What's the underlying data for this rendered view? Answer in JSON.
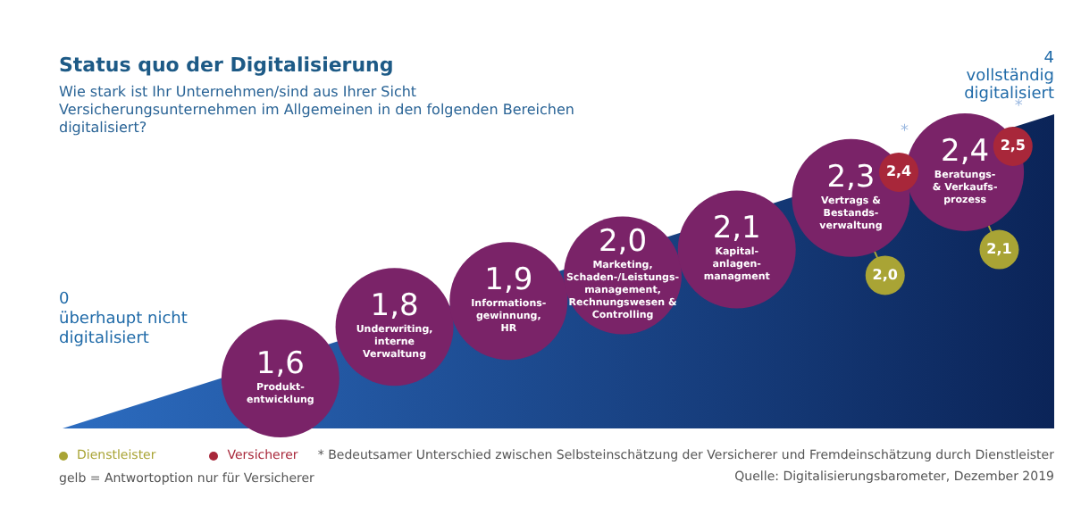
{
  "chart_data": {
    "type": "other",
    "title": "Status quo der Digitalisierung",
    "subtitle": "Wie stark ist Ihr Unternehmen/sind aus Ihrer Sicht Versicherungsunternehmen im Allgemeinen in den folgenden Bereichen digitalisiert?",
    "categories": [
      "Produkt-\nentwicklung",
      "Underwriting,\ninterne\nVerwaltung",
      "Informations-\ngewinnung,\nHR",
      "Marketing,\nSchaden-/Leistungs-\nmanagement,\nRechnungswesen &\nControlling",
      "Kapital-\nanlagen-\nmanagment",
      "Vertrags &\nBestands-\nverwaltung",
      "Beratungs-\n& Verkaufs-\nprozess"
    ],
    "series": [
      {
        "color": "#7a2368",
        "values": [
          1.6,
          1.8,
          1.9,
          2.0,
          2.1,
          2.3,
          2.4
        ],
        "value_labels": [
          "1,6",
          "1,8",
          "1,9",
          "2,0",
          "2,1",
          "2,3",
          "2,4"
        ]
      },
      {
        "name": "Dienstleister",
        "color": "#a9a435",
        "values": [
          null,
          null,
          null,
          null,
          null,
          2.0,
          2.1
        ],
        "value_labels": [
          null,
          null,
          null,
          null,
          null,
          "2,0",
          "2,1"
        ]
      },
      {
        "name": "Versicherer",
        "color": "#a8273a",
        "values": [
          null,
          null,
          null,
          null,
          null,
          2.4,
          2.5
        ],
        "value_labels": [
          null,
          null,
          null,
          null,
          null,
          "2,4",
          "2,5"
        ]
      }
    ],
    "legend": "bottom left",
    "annotations": [
      "4\nvollständig\ndigitalisiert",
      "0\nüberhaupt nicht\ndigitalisiert",
      {
        "text": "*",
        "x": "Beratungs-\n& Verkaufs-\nprozess"
      },
      {
        "text": "*",
        "x": "Vertrags &\nBestands-\nverwaltung"
      },
      "gelb = Antwortoption nur für Versicherer",
      "* Bedeutsamer Unterschied zwischen Selbsteinschätzung der Versicherer und Fremdeinschätzung durch Dienstleister",
      "Quelle: Digitalisierungsbarometer, Dezember 2019"
    ]
  }
}
